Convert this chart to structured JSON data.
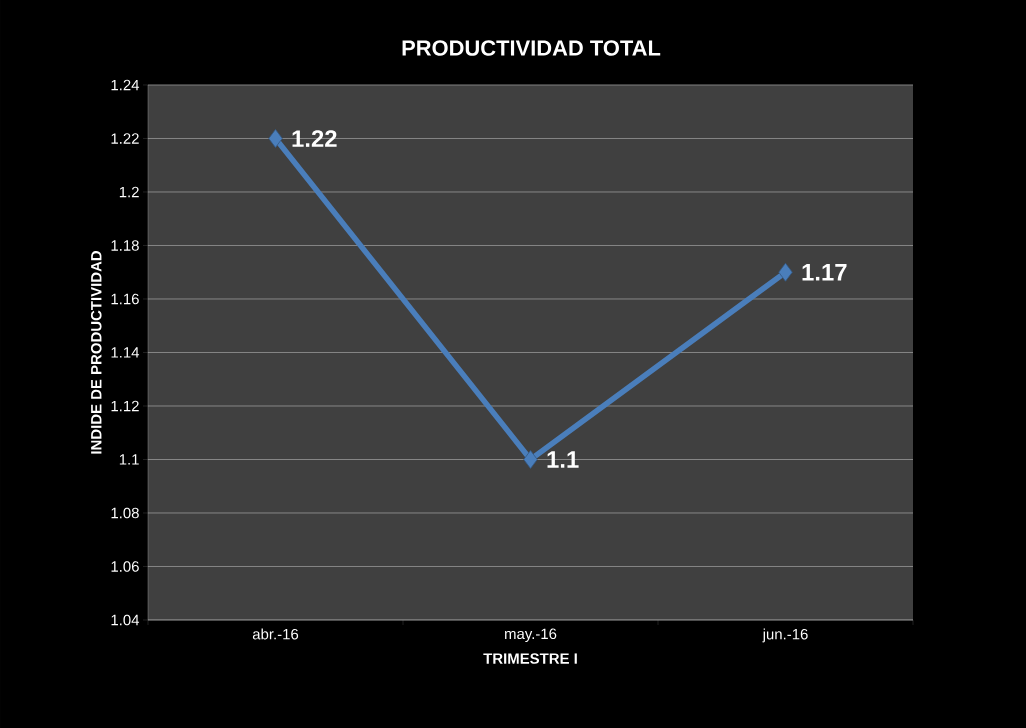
{
  "chart_data": {
    "type": "line",
    "title": "PRODUCTIVIDAD TOTAL",
    "xlabel": "TRIMESTRE I",
    "ylabel": "INDIDE DE PRODUCTIVIDAD",
    "categories": [
      "abr.-16",
      "may.-16",
      "jun.-16"
    ],
    "series": [
      {
        "color": "#4a7ebb",
        "values": [
          1.22,
          1.1,
          1.17
        ]
      }
    ],
    "ylim": [
      1.04,
      1.24
    ],
    "yticks": [
      1.04,
      1.06,
      1.08,
      1.1,
      1.12,
      1.14,
      1.16,
      1.18,
      1.2,
      1.22,
      1.24
    ],
    "grid": "y",
    "marker": "diamond",
    "line_style": "solid",
    "data_labels": true
  }
}
